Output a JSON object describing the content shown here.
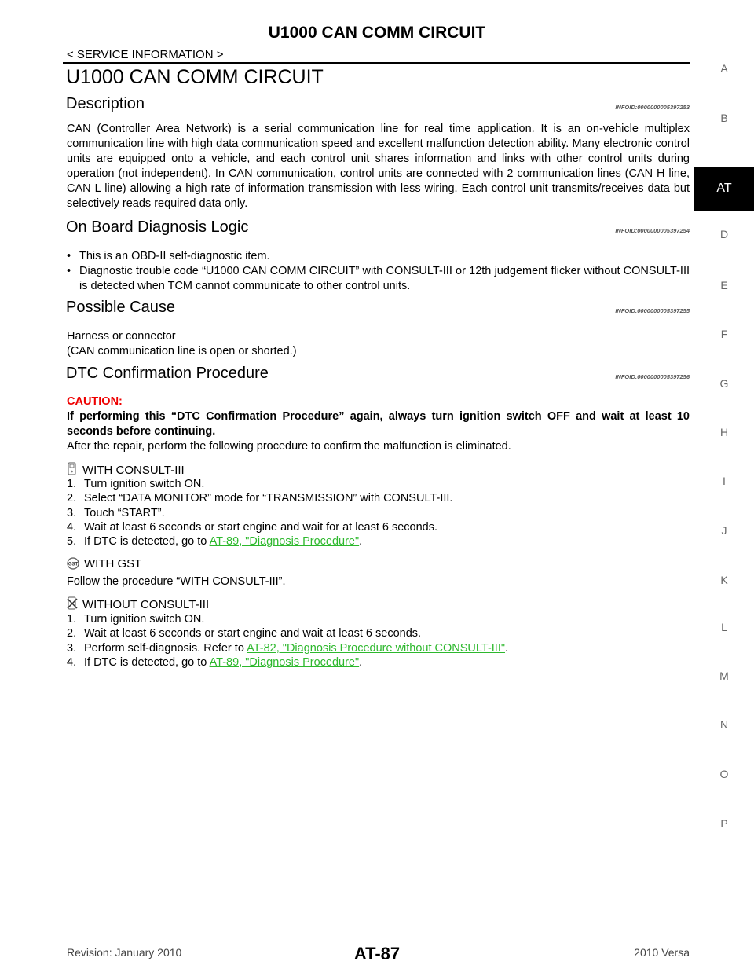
{
  "header": {
    "title": "U1000 CAN COMM CIRCUIT",
    "section": "< SERVICE INFORMATION >"
  },
  "side_index": [
    "A",
    "B",
    "AT",
    "D",
    "E",
    "F",
    "G",
    "H",
    "I",
    "J",
    "K",
    "L",
    "M",
    "N",
    "O",
    "P"
  ],
  "page_title": "U1000 CAN COMM CIRCUIT",
  "sections": [
    {
      "heading": "Description",
      "infoid": "INFOID:0000000005397253",
      "text": "CAN (Controller Area Network) is a serial communication line for real time application. It is an on-vehicle multiplex communication line with high data communication speed and excellent malfunction detection ability. Many electronic control units are equipped onto a vehicle, and each control unit shares information and links with other control units during operation (not independent). In CAN communication, control units are connected with 2 communication lines (CAN H line, CAN L line) allowing a high rate of information transmission with less wiring. Each control unit transmits/receives data but selectively reads required data only."
    },
    {
      "heading": "On Board Diagnosis Logic",
      "infoid": "INFOID:0000000005397254",
      "bullets": [
        "This is an OBD-II self-diagnostic item.",
        "Diagnostic trouble code “U1000 CAN COMM CIRCUIT” with CONSULT-III or 12th judgement flicker without CONSULT-III is detected when TCM cannot communicate to other control units."
      ]
    },
    {
      "heading": "Possible Cause",
      "infoid": "INFOID:0000000005397255",
      "lines": [
        "Harness or connector",
        "(CAN communication line is open or shorted.)"
      ]
    },
    {
      "heading": "DTC Confirmation Procedure",
      "infoid": "INFOID:0000000005397256",
      "caution_label": "CAUTION:",
      "caution": "If performing this “DTC Confirmation Procedure” again, always turn ignition switch OFF and wait at least 10 seconds before continuing.",
      "intro": "After the repair, perform the following procedure to confirm the malfunction is eliminated.",
      "procedures": [
        {
          "title": "WITH CONSULT-III",
          "steps": [
            {
              "num": "1.",
              "text": "Turn ignition switch ON."
            },
            {
              "num": "2.",
              "text": "Select “DATA MONITOR” mode for “TRANSMISSION” with CONSULT-III."
            },
            {
              "num": "3.",
              "text": "Touch “START”."
            },
            {
              "num": "4.",
              "text": "Wait at least 6 seconds or start engine and wait for at least 6 seconds."
            },
            {
              "num": "5.",
              "text": "If DTC is detected, go to ",
              "link": "AT-89, \"Diagnosis Procedure\"",
              "end": "."
            }
          ]
        },
        {
          "title": "WITH GST",
          "text": "Follow the procedure “WITH CONSULT-III”."
        },
        {
          "title": "WITHOUT CONSULT-III",
          "steps": [
            {
              "num": "1.",
              "text": "Turn ignition switch ON."
            },
            {
              "num": "2.",
              "text": "Wait at least 6 seconds or start engine and wait at least 6 seconds."
            },
            {
              "num": "3.",
              "text": "Perform self-diagnosis. Refer to ",
              "link": "AT-82, \"Diagnosis Procedure without CONSULT-III\"",
              "end": "."
            },
            {
              "num": "4.",
              "text": "If DTC is detected, go to ",
              "link": "AT-89, \"Diagnosis Procedure\"",
              "end": "."
            }
          ]
        }
      ]
    }
  ],
  "footer": {
    "revision": "Revision: January 2010",
    "page": "AT-87",
    "model": "2010 Versa"
  }
}
